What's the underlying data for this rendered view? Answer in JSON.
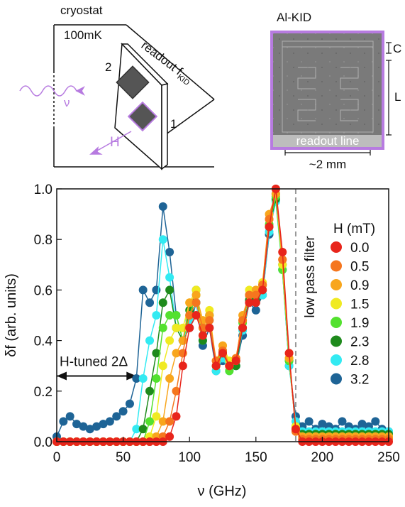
{
  "schematic": {
    "title": "cryostat",
    "temperature": "100mK",
    "readout": {
      "text": "readout f",
      "subscript": "KID"
    },
    "port_2": "2",
    "port_1": "1",
    "nu": "ν",
    "field": "H"
  },
  "image": {
    "title": "Al-KID",
    "capacitor": "C",
    "inductor": "L",
    "readout_line": "readout line",
    "scale": "~2 mm"
  },
  "chart_data": {
    "type": "line",
    "x_label": "ν (GHz)",
    "y_label": "δf (arb. units)",
    "legend_title": "H (mT)",
    "x": [
      0,
      5,
      10,
      15,
      20,
      25,
      30,
      35,
      40,
      45,
      50,
      55,
      60,
      65,
      70,
      75,
      80,
      85,
      90,
      95,
      100,
      105,
      110,
      115,
      120,
      125,
      130,
      135,
      140,
      145,
      150,
      155,
      160,
      165,
      170,
      175,
      180,
      185,
      190,
      195,
      200,
      205,
      210,
      215,
      220,
      225,
      230,
      235,
      240,
      245,
      250
    ],
    "series": [
      {
        "name": "0.0",
        "color": "#e8251b",
        "values": [
          0,
          0,
          0,
          0,
          0,
          0,
          0,
          0,
          0,
          0,
          0,
          0,
          0,
          0,
          0,
          0,
          0,
          0.02,
          0.1,
          0.3,
          0.45,
          0.5,
          0.42,
          0.45,
          0.3,
          0.35,
          0.3,
          0.32,
          0.45,
          0.55,
          0.55,
          0.6,
          0.85,
          1.0,
          0.75,
          0.35,
          0.05,
          0,
          0,
          0,
          0,
          0,
          0,
          0,
          0,
          0,
          0,
          0,
          0,
          0,
          0
        ]
      },
      {
        "name": "0.5",
        "color": "#f5761e",
        "values": [
          0,
          0,
          0,
          0,
          0,
          0,
          0,
          0,
          0,
          0,
          0,
          0,
          0,
          0,
          0,
          0,
          0.02,
          0.08,
          0.2,
          0.35,
          0.5,
          0.55,
          0.45,
          0.48,
          0.32,
          0.36,
          0.3,
          0.33,
          0.48,
          0.58,
          0.58,
          0.62,
          0.88,
          1.0,
          0.72,
          0.35,
          0.04,
          0.01,
          0.01,
          0.01,
          0.01,
          0.01,
          0.01,
          0.01,
          0.01,
          0.01,
          0.01,
          0.01,
          0.01,
          0.01,
          0.01
        ]
      },
      {
        "name": "0.9",
        "color": "#f8a61d",
        "values": [
          0,
          0,
          0,
          0,
          0,
          0,
          0,
          0,
          0,
          0,
          0,
          0,
          0,
          0,
          0,
          0.02,
          0.08,
          0.25,
          0.35,
          0.4,
          0.55,
          0.58,
          0.48,
          0.5,
          0.32,
          0.38,
          0.3,
          0.32,
          0.5,
          0.58,
          0.6,
          0.62,
          0.9,
          0.98,
          0.72,
          0.33,
          0.05,
          0.02,
          0.02,
          0.02,
          0.02,
          0.02,
          0.02,
          0.02,
          0.02,
          0.02,
          0.02,
          0.02,
          0.02,
          0.02,
          0.02
        ]
      },
      {
        "name": "1.5",
        "color": "#f0ea22",
        "values": [
          0,
          0,
          0,
          0,
          0,
          0,
          0,
          0,
          0,
          0,
          0,
          0,
          0,
          0,
          0.02,
          0.1,
          0.3,
          0.4,
          0.45,
          0.45,
          0.55,
          0.6,
          0.45,
          0.52,
          0.3,
          0.38,
          0.32,
          0.33,
          0.48,
          0.6,
          0.6,
          0.63,
          0.88,
          0.98,
          0.7,
          0.33,
          0.06,
          0.02,
          0.02,
          0.02,
          0.02,
          0.02,
          0.02,
          0.02,
          0.02,
          0.02,
          0.02,
          0.02,
          0.02,
          0.02,
          0.02
        ]
      },
      {
        "name": "1.9",
        "color": "#53e12f",
        "values": [
          0,
          0,
          0,
          0,
          0,
          0,
          0,
          0,
          0,
          0,
          0,
          0,
          0,
          0,
          0.08,
          0.25,
          0.45,
          0.5,
          0.5,
          0.4,
          0.5,
          0.58,
          0.42,
          0.5,
          0.3,
          0.36,
          0.28,
          0.32,
          0.47,
          0.58,
          0.58,
          0.62,
          0.86,
          0.97,
          0.68,
          0.32,
          0.06,
          0.02,
          0.02,
          0.02,
          0.02,
          0.02,
          0.02,
          0.02,
          0.02,
          0.02,
          0.02,
          0.02,
          0.02,
          0.02,
          0.02
        ]
      },
      {
        "name": "2.3",
        "color": "#1e8a1c",
        "values": [
          0,
          0,
          0,
          0,
          0,
          0,
          0,
          0,
          0,
          0,
          0,
          0,
          0,
          0.05,
          0.2,
          0.35,
          0.55,
          0.6,
          0.45,
          0.4,
          0.52,
          0.6,
          0.4,
          0.5,
          0.3,
          0.35,
          0.3,
          0.3,
          0.45,
          0.56,
          0.56,
          0.6,
          0.85,
          0.96,
          0.7,
          0.32,
          0.06,
          0.03,
          0.03,
          0.03,
          0.03,
          0.03,
          0.03,
          0.03,
          0.03,
          0.03,
          0.03,
          0.03,
          0.03,
          0.03,
          0.03
        ]
      },
      {
        "name": "2.8",
        "color": "#33eaf2",
        "values": [
          0,
          0,
          0,
          0,
          0,
          0,
          0,
          0,
          0,
          0,
          0,
          0,
          0.05,
          0.25,
          0.4,
          0.5,
          0.8,
          0.65,
          0.45,
          0.4,
          0.48,
          0.55,
          0.4,
          0.48,
          0.28,
          0.33,
          0.28,
          0.3,
          0.44,
          0.55,
          0.55,
          0.58,
          0.83,
          0.95,
          0.68,
          0.3,
          0.08,
          0.04,
          0.04,
          0.04,
          0.04,
          0.04,
          0.04,
          0.04,
          0.04,
          0.04,
          0.04,
          0.04,
          0.04,
          0.04,
          0.04
        ]
      },
      {
        "name": "3.2",
        "color": "#1e6496",
        "values": [
          0.02,
          0.08,
          0.1,
          0.07,
          0.06,
          0.05,
          0.06,
          0.07,
          0.08,
          0.1,
          0.12,
          0.15,
          0.25,
          0.6,
          0.55,
          0.6,
          0.93,
          0.75,
          0.5,
          0.4,
          0.45,
          0.55,
          0.38,
          0.45,
          0.28,
          0.32,
          0.3,
          0.3,
          0.42,
          0.55,
          0.52,
          0.58,
          0.82,
          0.98,
          0.68,
          0.3,
          0.1,
          0.06,
          0.08,
          0.05,
          0.07,
          0.06,
          0.05,
          0.08,
          0.06,
          0.05,
          0.07,
          0.06,
          0.08,
          0.05,
          0.04
        ]
      }
    ],
    "xlim": [
      0,
      250
    ],
    "ylim": [
      0,
      1
    ],
    "xticks": [
      0,
      50,
      100,
      150,
      200,
      250
    ],
    "yticks": [
      {
        "value": 0,
        "label": "0.0"
      },
      0.2,
      0.4,
      0.6,
      0.8,
      {
        "value": 1,
        "label": "1.0"
      }
    ],
    "annotations": [
      {
        "text": "H-tuned 2Δ",
        "x": [
          0,
          60
        ],
        "y": 0.26
      },
      {
        "text": "low pass filter",
        "x": 180
      }
    ]
  }
}
